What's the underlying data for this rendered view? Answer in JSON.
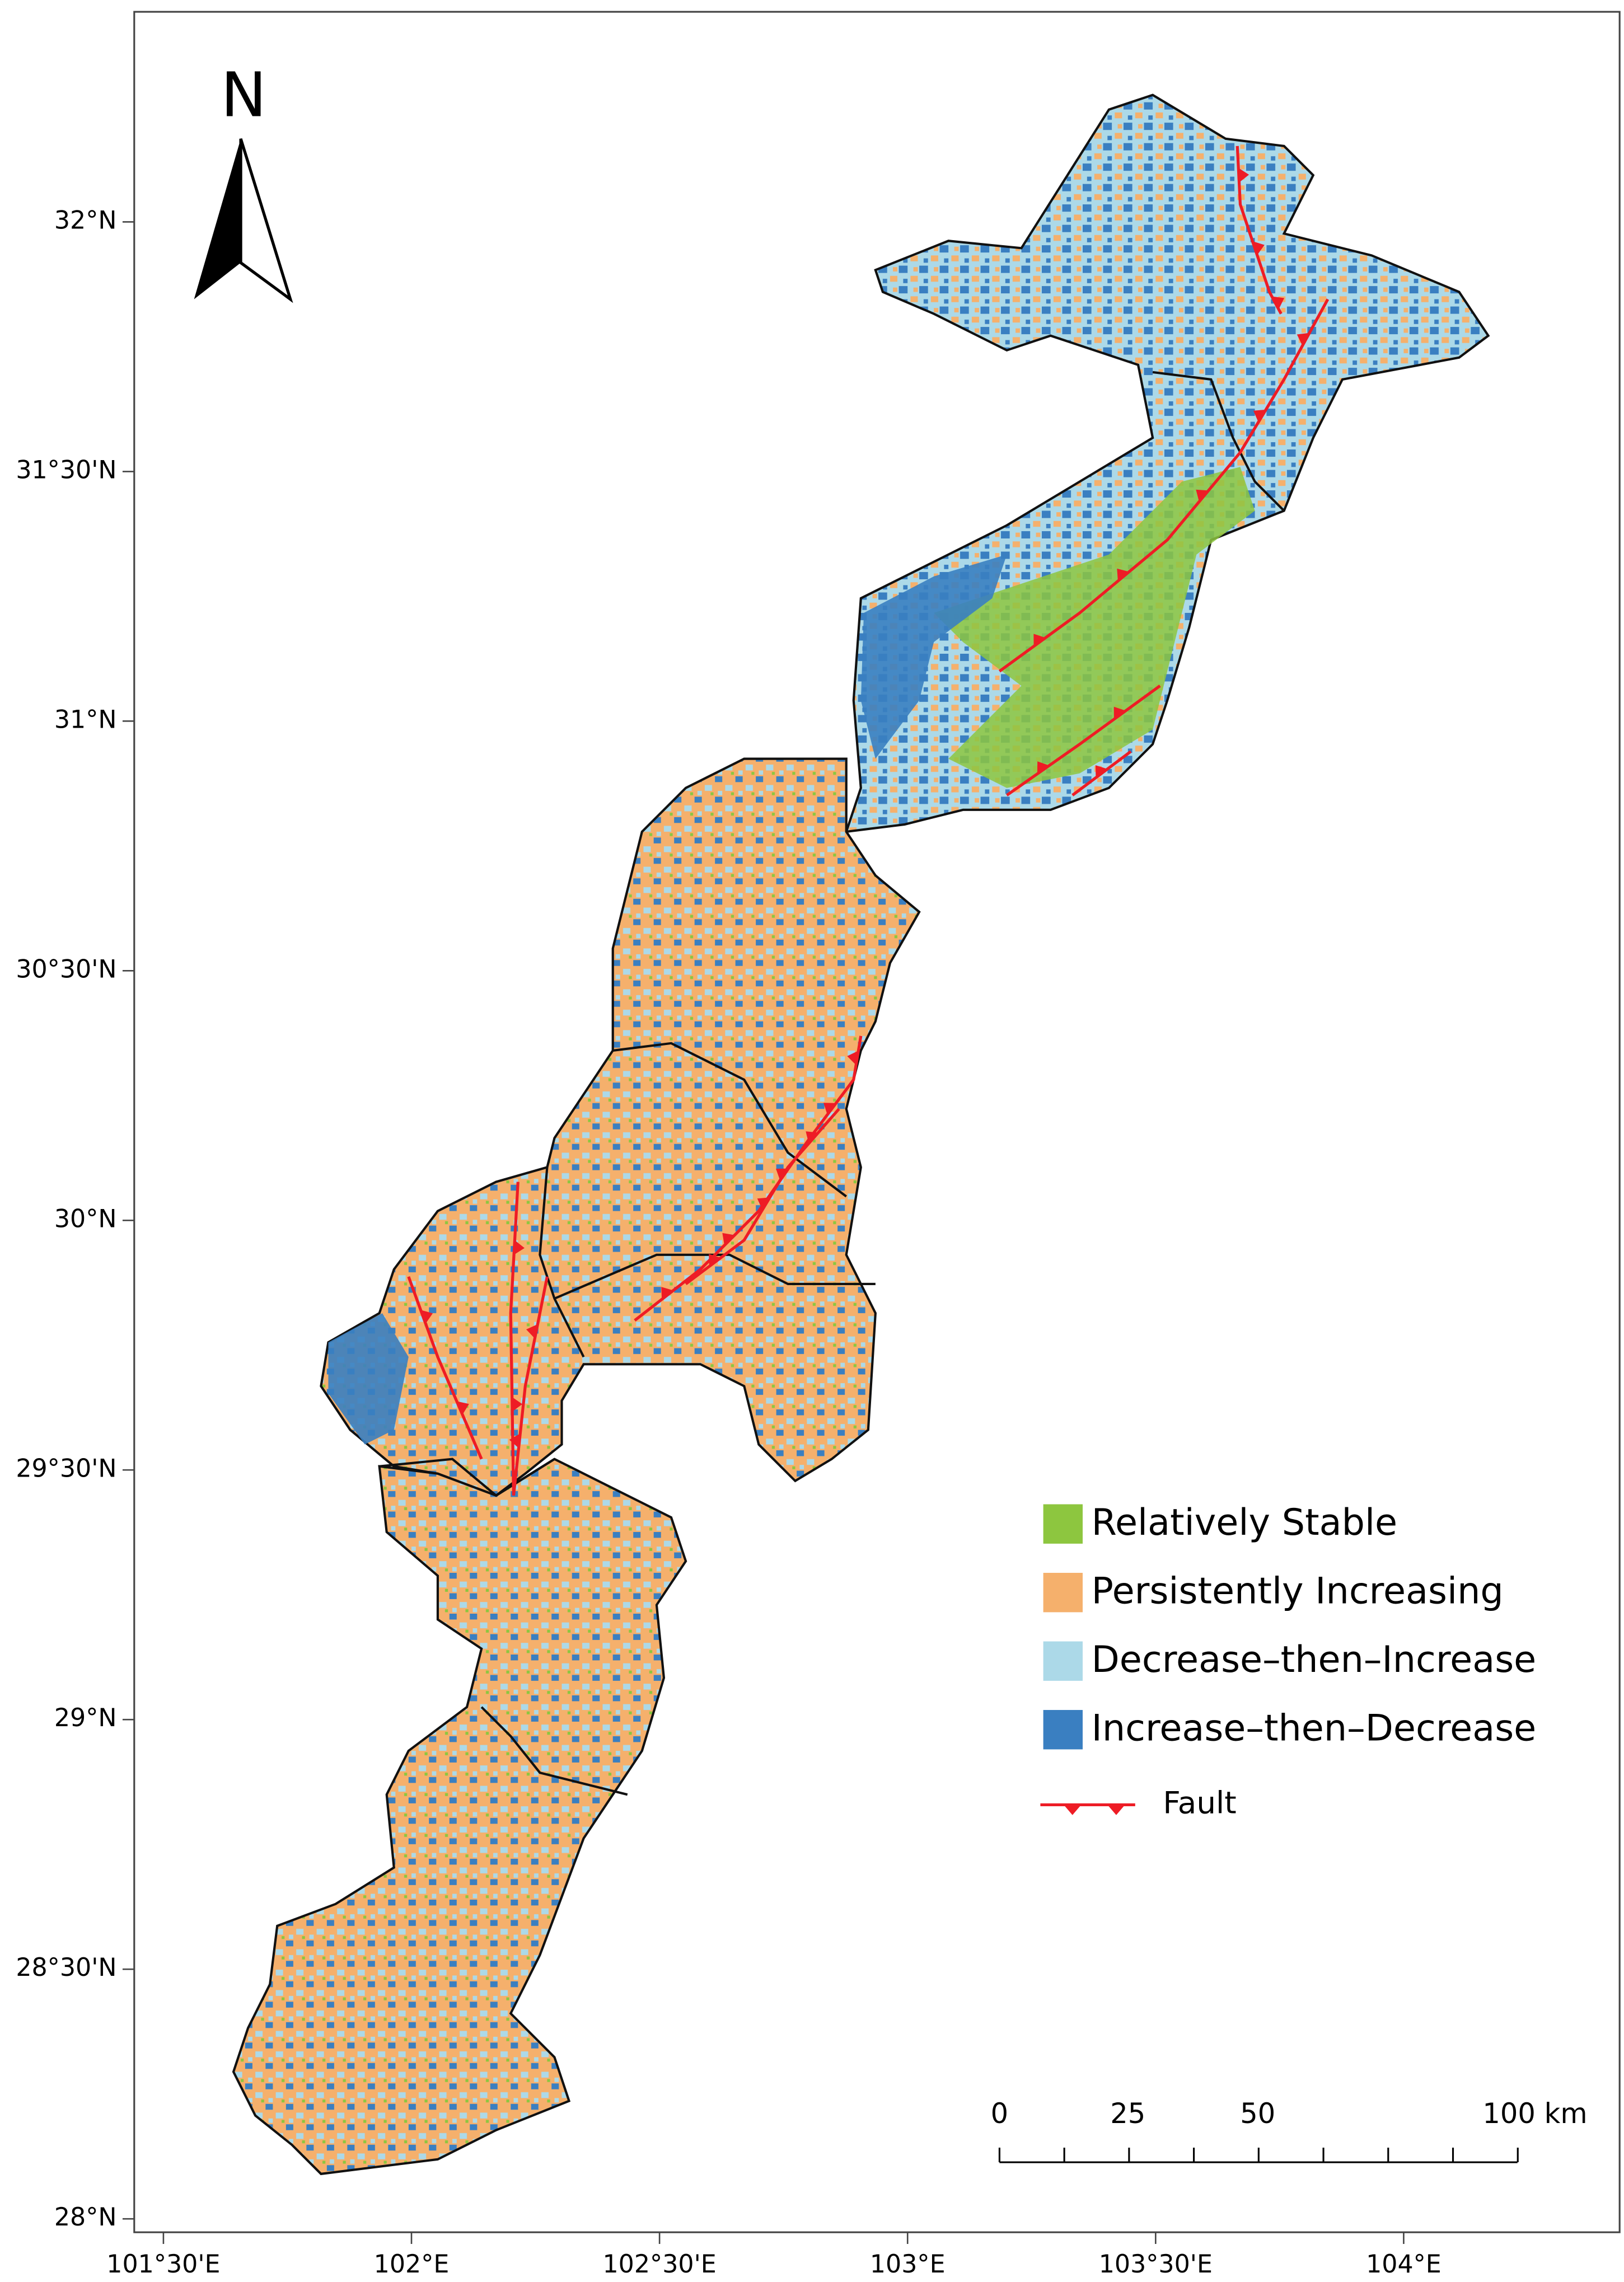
{
  "north": "N",
  "lat_labels": [
    "32°N",
    "31°30'N",
    "31°N",
    "30°30'N",
    "30°N",
    "29°30'N",
    "29°N",
    "28°30'N",
    "28°N"
  ],
  "lon_labels": [
    "101°30'E",
    "102°E",
    "102°30'E",
    "103°E",
    "103°30'E",
    "104°E"
  ],
  "legend": [
    {
      "label": "Relatively Stable",
      "color": "#8dc63f"
    },
    {
      "label": "Persistently Increasing",
      "color": "#f5b06c"
    },
    {
      "label": "Decrease–then–Increase",
      "color": "#acd9e8"
    },
    {
      "label": "Increase–then–Decrease",
      "color": "#3a7fc1"
    }
  ],
  "fault": {
    "label": "Fault",
    "color": "#ee1c25"
  },
  "scale_labels": [
    "0",
    "25",
    "50",
    "100 km"
  ]
}
